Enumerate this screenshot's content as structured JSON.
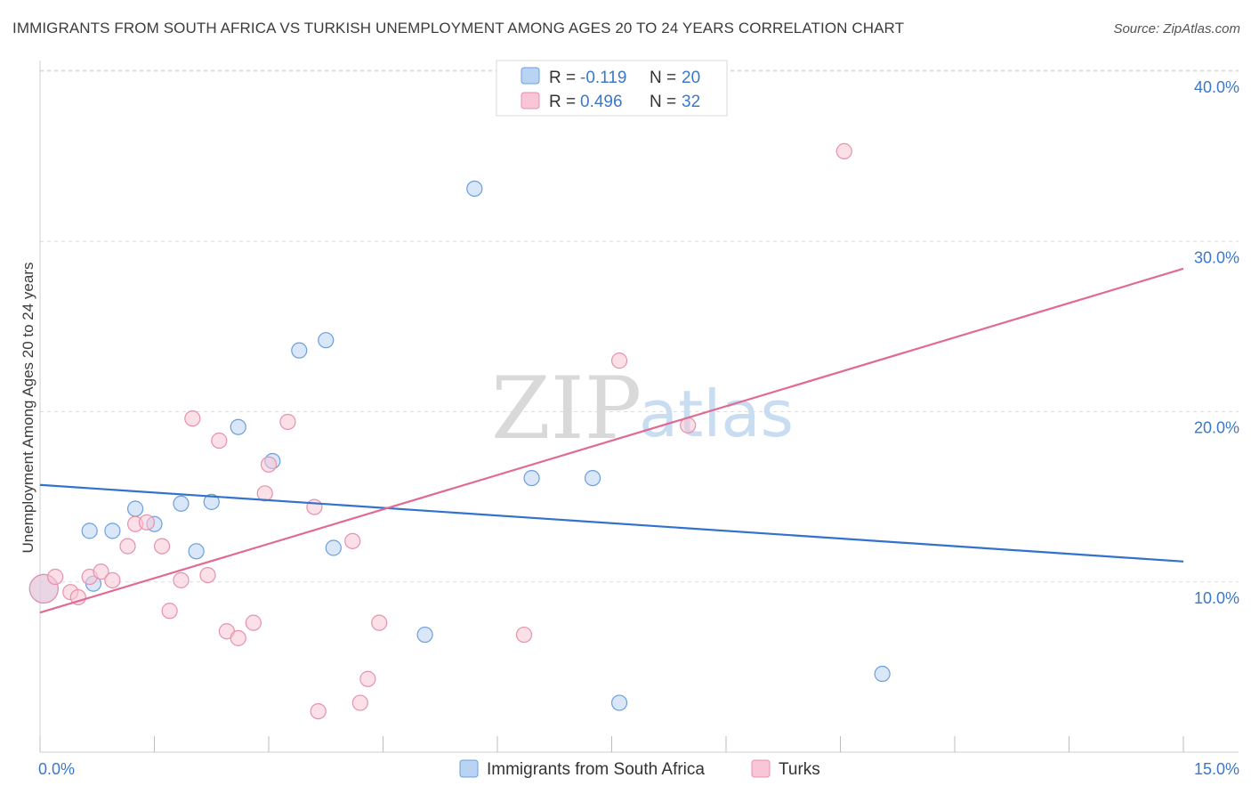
{
  "header": {
    "title": "IMMIGRANTS FROM SOUTH AFRICA VS TURKISH UNEMPLOYMENT AMONG AGES 20 TO 24 YEARS CORRELATION CHART",
    "source": "Source: ZipAtlas.com"
  },
  "watermark": {
    "zip": "ZIP",
    "atlas": "atlas"
  },
  "legend": {
    "rows": [
      {
        "r_label": "R =",
        "r_value": "-0.119",
        "n_label": "N =",
        "n_value": "20"
      },
      {
        "r_label": "R =",
        "r_value": "0.496",
        "n_label": "N =",
        "n_value": "32"
      }
    ]
  },
  "bottom_legend": {
    "items": [
      "Immigrants from South Africa",
      "Turks"
    ]
  },
  "colors": {
    "blue_fill": "#b9d3f2",
    "blue_stroke": "#6a9fe0",
    "blue_line": "#3272cc",
    "pink_fill": "#f8c6d6",
    "pink_stroke": "#e890ae",
    "pink_line": "#e06a94",
    "grid": "#dcdcdc",
    "axis_text": "#3b78c9"
  },
  "chart_data": {
    "type": "scatter",
    "title": "IMMIGRANTS FROM SOUTH AFRICA VS TURKISH UNEMPLOYMENT AMONG AGES 20 TO 24 YEARS CORRELATION CHART",
    "xlabel": "",
    "ylabel": "Unemployment Among Ages 20 to 24 years",
    "xlim": [
      0,
      15
    ],
    "ylim": [
      0,
      40
    ],
    "x_tick_labels": [
      "0.0%",
      "15.0%"
    ],
    "y_ticks": [
      10,
      20,
      30,
      40
    ],
    "y_tick_labels": [
      "10.0%",
      "20.0%",
      "30.0%",
      "40.0%"
    ],
    "grid": true,
    "series": [
      {
        "name": "Immigrants from South Africa",
        "color": "#6a9fe0",
        "r": -0.119,
        "n": 20,
        "trend": {
          "x": [
            0,
            15
          ],
          "y": [
            15.7,
            11.2
          ]
        },
        "points": [
          {
            "x": 0.05,
            "y": 9.6,
            "big": true
          },
          {
            "x": 0.7,
            "y": 9.9
          },
          {
            "x": 0.65,
            "y": 13.0
          },
          {
            "x": 0.95,
            "y": 13.0
          },
          {
            "x": 1.25,
            "y": 14.3
          },
          {
            "x": 1.5,
            "y": 13.4
          },
          {
            "x": 1.85,
            "y": 14.6
          },
          {
            "x": 2.05,
            "y": 11.8
          },
          {
            "x": 2.25,
            "y": 14.7
          },
          {
            "x": 2.6,
            "y": 19.1
          },
          {
            "x": 3.05,
            "y": 17.1
          },
          {
            "x": 3.4,
            "y": 23.6
          },
          {
            "x": 3.75,
            "y": 24.2
          },
          {
            "x": 3.85,
            "y": 12.0
          },
          {
            "x": 5.05,
            "y": 6.9
          },
          {
            "x": 5.7,
            "y": 33.1
          },
          {
            "x": 6.45,
            "y": 16.1
          },
          {
            "x": 7.25,
            "y": 16.1
          },
          {
            "x": 7.6,
            "y": 2.9
          },
          {
            "x": 11.05,
            "y": 4.6
          }
        ]
      },
      {
        "name": "Turks",
        "color": "#e890ae",
        "r": 0.496,
        "n": 32,
        "trend": {
          "x": [
            0,
            15
          ],
          "y": [
            8.2,
            28.4
          ]
        },
        "points": [
          {
            "x": 0.05,
            "y": 9.6,
            "big": true
          },
          {
            "x": 0.2,
            "y": 10.3
          },
          {
            "x": 0.4,
            "y": 9.4
          },
          {
            "x": 0.5,
            "y": 9.1
          },
          {
            "x": 0.65,
            "y": 10.3
          },
          {
            "x": 0.8,
            "y": 10.6
          },
          {
            "x": 0.95,
            "y": 10.1
          },
          {
            "x": 1.15,
            "y": 12.1
          },
          {
            "x": 1.25,
            "y": 13.4
          },
          {
            "x": 1.4,
            "y": 13.5
          },
          {
            "x": 1.6,
            "y": 12.1
          },
          {
            "x": 1.7,
            "y": 8.3
          },
          {
            "x": 1.85,
            "y": 10.1
          },
          {
            "x": 2.0,
            "y": 19.6
          },
          {
            "x": 2.2,
            "y": 10.4
          },
          {
            "x": 2.35,
            "y": 18.3
          },
          {
            "x": 2.45,
            "y": 7.1
          },
          {
            "x": 2.6,
            "y": 6.7
          },
          {
            "x": 2.8,
            "y": 7.6
          },
          {
            "x": 2.95,
            "y": 15.2
          },
          {
            "x": 3.0,
            "y": 16.9
          },
          {
            "x": 3.25,
            "y": 19.4
          },
          {
            "x": 3.6,
            "y": 14.4
          },
          {
            "x": 3.65,
            "y": 2.4
          },
          {
            "x": 4.1,
            "y": 12.4
          },
          {
            "x": 4.2,
            "y": 2.9
          },
          {
            "x": 4.3,
            "y": 4.3
          },
          {
            "x": 4.45,
            "y": 7.6
          },
          {
            "x": 6.35,
            "y": 6.9
          },
          {
            "x": 7.6,
            "y": 23.0
          },
          {
            "x": 8.5,
            "y": 19.2
          },
          {
            "x": 10.55,
            "y": 35.3
          }
        ]
      }
    ]
  }
}
